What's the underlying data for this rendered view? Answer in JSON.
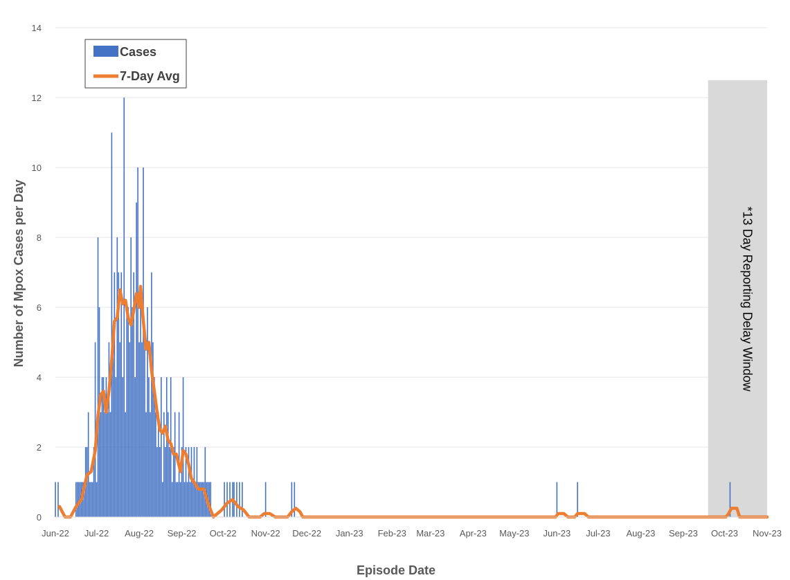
{
  "chart_data": {
    "type": "bar",
    "xlabel": "Episode Date",
    "ylabel": "Number of Mpox Cases per Day",
    "ylim": [
      0,
      14
    ],
    "yticks": [
      0,
      2,
      4,
      6,
      8,
      10,
      12,
      14
    ],
    "xlim": [
      "2022-06-01",
      "2023-11-01"
    ],
    "xtick_labels": [
      "Jun-22",
      "Jul-22",
      "Aug-22",
      "Sep-22",
      "Oct-22",
      "Nov-22",
      "Dec-22",
      "Jan-23",
      "Feb-23",
      "Mar-23",
      "Apr-23",
      "May-23",
      "Jun-23",
      "Jul-23",
      "Aug-23",
      "Sep-23",
      "Oct-23",
      "Nov-23"
    ],
    "xtick_dates": [
      "2022-06-01",
      "2022-07-01",
      "2022-08-01",
      "2022-09-01",
      "2022-10-01",
      "2022-11-01",
      "2022-12-01",
      "2023-01-01",
      "2023-02-01",
      "2023-03-01",
      "2023-04-01",
      "2023-05-01",
      "2023-06-01",
      "2023-07-01",
      "2023-08-01",
      "2023-09-01",
      "2023-10-01",
      "2023-11-01"
    ],
    "grid": true,
    "legend": {
      "placement": "top-left"
    },
    "series": [
      {
        "name": "Cases",
        "kind": "bar",
        "color": "#4472C4",
        "points": [
          [
            "2022-06-01",
            1
          ],
          [
            "2022-06-03",
            1
          ],
          [
            "2022-06-16",
            1
          ],
          [
            "2022-06-17",
            1
          ],
          [
            "2022-06-18",
            1
          ],
          [
            "2022-06-19",
            1
          ],
          [
            "2022-06-20",
            1
          ],
          [
            "2022-06-21",
            1
          ],
          [
            "2022-06-22",
            1
          ],
          [
            "2022-06-23",
            2
          ],
          [
            "2022-06-24",
            2
          ],
          [
            "2022-06-25",
            3
          ],
          [
            "2022-06-26",
            1
          ],
          [
            "2022-06-27",
            1
          ],
          [
            "2022-06-28",
            1
          ],
          [
            "2022-06-29",
            2
          ],
          [
            "2022-06-30",
            5
          ],
          [
            "2022-07-01",
            1
          ],
          [
            "2022-07-02",
            8
          ],
          [
            "2022-07-03",
            6
          ],
          [
            "2022-07-04",
            3
          ],
          [
            "2022-07-05",
            4
          ],
          [
            "2022-07-06",
            4
          ],
          [
            "2022-07-07",
            3
          ],
          [
            "2022-07-08",
            4
          ],
          [
            "2022-07-09",
            3
          ],
          [
            "2022-07-10",
            5
          ],
          [
            "2022-07-11",
            3
          ],
          [
            "2022-07-12",
            11
          ],
          [
            "2022-07-13",
            5
          ],
          [
            "2022-07-14",
            7
          ],
          [
            "2022-07-15",
            4
          ],
          [
            "2022-07-16",
            8
          ],
          [
            "2022-07-17",
            7
          ],
          [
            "2022-07-18",
            5
          ],
          [
            "2022-07-19",
            7
          ],
          [
            "2022-07-20",
            4
          ],
          [
            "2022-07-21",
            12
          ],
          [
            "2022-07-22",
            3
          ],
          [
            "2022-07-23",
            6
          ],
          [
            "2022-07-24",
            6
          ],
          [
            "2022-07-25",
            5
          ],
          [
            "2022-07-26",
            8
          ],
          [
            "2022-07-27",
            6
          ],
          [
            "2022-07-28",
            7
          ],
          [
            "2022-07-29",
            4
          ],
          [
            "2022-07-30",
            9
          ],
          [
            "2022-07-31",
            10
          ],
          [
            "2022-08-01",
            5
          ],
          [
            "2022-08-02",
            6
          ],
          [
            "2022-08-03",
            5
          ],
          [
            "2022-08-04",
            10
          ],
          [
            "2022-08-05",
            5
          ],
          [
            "2022-08-06",
            3
          ],
          [
            "2022-08-07",
            6
          ],
          [
            "2022-08-08",
            4
          ],
          [
            "2022-08-09",
            3
          ],
          [
            "2022-08-10",
            7
          ],
          [
            "2022-08-11",
            5
          ],
          [
            "2022-08-12",
            4
          ],
          [
            "2022-08-13",
            3
          ],
          [
            "2022-08-14",
            2
          ],
          [
            "2022-08-15",
            3
          ],
          [
            "2022-08-16",
            2
          ],
          [
            "2022-08-17",
            4
          ],
          [
            "2022-08-18",
            1
          ],
          [
            "2022-08-19",
            3
          ],
          [
            "2022-08-20",
            2
          ],
          [
            "2022-08-21",
            4
          ],
          [
            "2022-08-22",
            3
          ],
          [
            "2022-08-23",
            2
          ],
          [
            "2022-08-24",
            4
          ],
          [
            "2022-08-25",
            1
          ],
          [
            "2022-08-26",
            2
          ],
          [
            "2022-08-27",
            3
          ],
          [
            "2022-08-28",
            1
          ],
          [
            "2022-08-29",
            1
          ],
          [
            "2022-08-30",
            3
          ],
          [
            "2022-08-31",
            1
          ],
          [
            "2022-09-01",
            2
          ],
          [
            "2022-09-02",
            4
          ],
          [
            "2022-09-03",
            1
          ],
          [
            "2022-09-04",
            2
          ],
          [
            "2022-09-05",
            1
          ],
          [
            "2022-09-06",
            2
          ],
          [
            "2022-09-07",
            1
          ],
          [
            "2022-09-08",
            2
          ],
          [
            "2022-09-09",
            1
          ],
          [
            "2022-09-10",
            2
          ],
          [
            "2022-09-11",
            1
          ],
          [
            "2022-09-12",
            2
          ],
          [
            "2022-09-13",
            1
          ],
          [
            "2022-09-14",
            1
          ],
          [
            "2022-09-15",
            1
          ],
          [
            "2022-09-16",
            1
          ],
          [
            "2022-09-17",
            1
          ],
          [
            "2022-09-18",
            2
          ],
          [
            "2022-09-19",
            1
          ],
          [
            "2022-09-20",
            1
          ],
          [
            "2022-09-21",
            1
          ],
          [
            "2022-09-22",
            1
          ],
          [
            "2022-10-02",
            1
          ],
          [
            "2022-10-04",
            1
          ],
          [
            "2022-10-06",
            1
          ],
          [
            "2022-10-08",
            1
          ],
          [
            "2022-10-09",
            1
          ],
          [
            "2022-10-11",
            1
          ],
          [
            "2022-10-13",
            1
          ],
          [
            "2022-10-15",
            1
          ],
          [
            "2022-11-01",
            1
          ],
          [
            "2022-11-20",
            1
          ],
          [
            "2022-11-22",
            1
          ],
          [
            "2023-06-01",
            1
          ],
          [
            "2023-06-16",
            1
          ],
          [
            "2023-10-05",
            1
          ]
        ]
      },
      {
        "name": "7-Day Avg",
        "kind": "line",
        "color": "#ED7D31",
        "points": [
          [
            "2022-06-04",
            0.3
          ],
          [
            "2022-06-06",
            0.15
          ],
          [
            "2022-06-08",
            0.0
          ],
          [
            "2022-06-12",
            0.0
          ],
          [
            "2022-06-16",
            0.3
          ],
          [
            "2022-06-20",
            0.5
          ],
          [
            "2022-06-24",
            1.2
          ],
          [
            "2022-06-27",
            1.3
          ],
          [
            "2022-06-30",
            1.9
          ],
          [
            "2022-07-02",
            2.9
          ],
          [
            "2022-07-04",
            3.5
          ],
          [
            "2022-07-06",
            3.6
          ],
          [
            "2022-07-08",
            3.0
          ],
          [
            "2022-07-10",
            3.6
          ],
          [
            "2022-07-12",
            4.5
          ],
          [
            "2022-07-14",
            5.6
          ],
          [
            "2022-07-16",
            5.7
          ],
          [
            "2022-07-18",
            6.5
          ],
          [
            "2022-07-20",
            6.1
          ],
          [
            "2022-07-22",
            6.2
          ],
          [
            "2022-07-24",
            5.7
          ],
          [
            "2022-07-26",
            5.5
          ],
          [
            "2022-07-28",
            5.9
          ],
          [
            "2022-07-30",
            6.4
          ],
          [
            "2022-08-01",
            6.0
          ],
          [
            "2022-08-02",
            6.6
          ],
          [
            "2022-08-04",
            5.6
          ],
          [
            "2022-08-06",
            4.8
          ],
          [
            "2022-08-08",
            5.0
          ],
          [
            "2022-08-10",
            4.2
          ],
          [
            "2022-08-12",
            3.6
          ],
          [
            "2022-08-14",
            3.0
          ],
          [
            "2022-08-16",
            2.5
          ],
          [
            "2022-08-18",
            2.4
          ],
          [
            "2022-08-20",
            2.6
          ],
          [
            "2022-08-22",
            2.2
          ],
          [
            "2022-08-24",
            2.1
          ],
          [
            "2022-08-26",
            1.8
          ],
          [
            "2022-08-28",
            1.8
          ],
          [
            "2022-08-31",
            1.3
          ],
          [
            "2022-09-02",
            1.9
          ],
          [
            "2022-09-04",
            1.8
          ],
          [
            "2022-09-06",
            1.5
          ],
          [
            "2022-09-08",
            1.1
          ],
          [
            "2022-09-10",
            1.0
          ],
          [
            "2022-09-13",
            0.8
          ],
          [
            "2022-09-17",
            0.8
          ],
          [
            "2022-09-20",
            0.4
          ],
          [
            "2022-09-24",
            0.0
          ],
          [
            "2022-09-30",
            0.2
          ],
          [
            "2022-10-04",
            0.4
          ],
          [
            "2022-10-08",
            0.5
          ],
          [
            "2022-10-12",
            0.3
          ],
          [
            "2022-10-16",
            0.2
          ],
          [
            "2022-10-20",
            0.0
          ],
          [
            "2022-10-28",
            0.0
          ],
          [
            "2022-10-31",
            0.1
          ],
          [
            "2022-11-04",
            0.1
          ],
          [
            "2022-11-08",
            0.0
          ],
          [
            "2022-11-17",
            0.0
          ],
          [
            "2022-11-20",
            0.15
          ],
          [
            "2022-11-23",
            0.25
          ],
          [
            "2022-11-26",
            0.15
          ],
          [
            "2022-11-28",
            0.0
          ],
          [
            "2023-05-31",
            0.0
          ],
          [
            "2023-06-02",
            0.1
          ],
          [
            "2023-06-06",
            0.1
          ],
          [
            "2023-06-09",
            0.0
          ],
          [
            "2023-06-14",
            0.0
          ],
          [
            "2023-06-16",
            0.1
          ],
          [
            "2023-06-21",
            0.1
          ],
          [
            "2023-06-24",
            0.0
          ],
          [
            "2023-10-02",
            0.0
          ],
          [
            "2023-10-04",
            0.1
          ],
          [
            "2023-10-06",
            0.25
          ],
          [
            "2023-10-10",
            0.25
          ],
          [
            "2023-10-12",
            0.0
          ],
          [
            "2023-11-01",
            0.0
          ]
        ]
      }
    ],
    "annotations": [
      {
        "text": "*13 Day Reporting Delay Window",
        "start": "2023-09-19",
        "end": "2023-11-01",
        "y_top": 12.5,
        "color": "#D9D9D9"
      }
    ]
  }
}
